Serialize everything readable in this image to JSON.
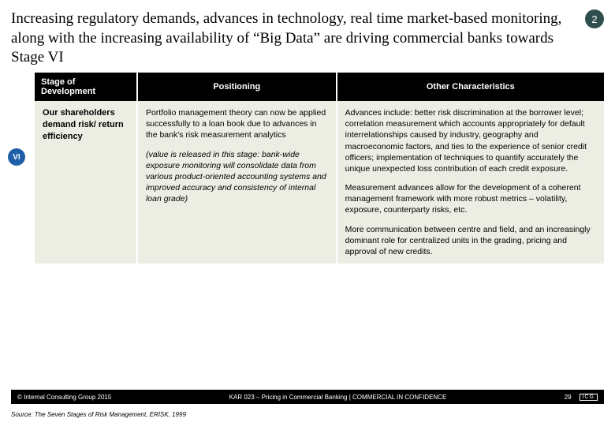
{
  "title": "Increasing regulatory demands, advances in technology, real time market-based monitoring, along with the increasing availability of “Big Data” are driving commercial banks towards Stage VI",
  "page_badge": "2",
  "stage_badge": "VI",
  "table": {
    "col_widths": [
      "18%",
      "35%",
      "47%"
    ],
    "headers": [
      "Stage of Development",
      "Positioning",
      "Other Characteristics"
    ],
    "row": {
      "stage": "Our shareholders demand risk/ return efficiency",
      "positioning_p1": "Portfolio management theory can now be applied successfully to a loan book due to advances in the bank's risk measurement analytics",
      "positioning_p2": "(value is released in this stage: bank-wide exposure monitoring will consolidate data from various product-oriented accounting systems and improved accuracy and consistency of internal loan grade)",
      "other_p1": "Advances include: better risk discrimination at the borrower level; correlation measurement which accounts appropriately for default interrelationships caused by industry, geography and macroeconomic factors, and ties to the experience of senior credit officers; implementation of techniques to quantify accurately the unique unexpected loss contribution of each credit exposure.",
      "other_p2": "Measurement advances allow for the development of a coherent management framework with more robust metrics – volatility, exposure, counterparty risks, etc.",
      "other_p3": "More communication between centre and field, and an increasingly dominant role for centralized units in the grading, pricing and approval of new credits."
    }
  },
  "footer": {
    "left": "© Internal Consulting Group 2015",
    "center": "KAR 023 – Pricing in Commercial Banking | COMMERCIAL IN CONFIDENCE",
    "page": "29",
    "logo": "ICG"
  },
  "source": "Source: The Seven Stages of Risk Management, ERISK, 1999",
  "colors": {
    "header_bg": "#000000",
    "cell_bg": "#eceee4",
    "badge_bg": "#2f4f4f",
    "stage_bg": "#1f5fa8"
  }
}
